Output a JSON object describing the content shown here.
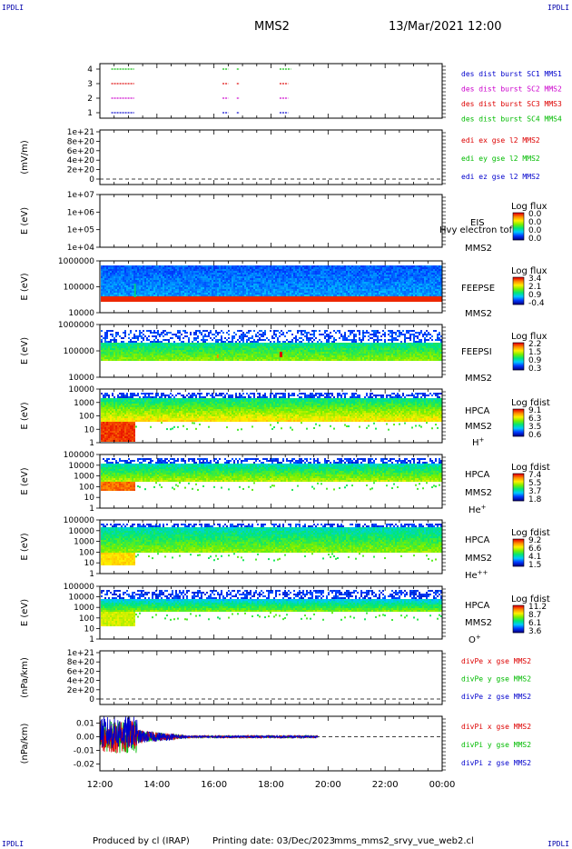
{
  "header": {
    "corner_tl": "IPDLI",
    "corner_tr": "IPDLI",
    "corner_bl": "IPDLI",
    "corner_br": "IPDLI",
    "title": "MMS2",
    "datetime": "13/Mar/2021 12:00"
  },
  "footer": {
    "produced": "Produced by cl (IRAP)",
    "printed": "Printing date: 03/Dec/2023",
    "file": "mms_mms2_srvy_vue_web2.cl"
  },
  "colors": {
    "mms1": "#0000cc",
    "mms2": "#cc00cc",
    "mms3": "#dd0000",
    "mms4": "#00bb00"
  },
  "chart_data": [
    {
      "type": "line",
      "panel": "burst",
      "yticks": [
        "1",
        "2",
        "3",
        "4"
      ],
      "legend": [
        {
          "text": "des dist burst SC1 MMS1",
          "color": "#0000cc"
        },
        {
          "text": "des dist burst SC2 MMS2",
          "color": "#cc00cc"
        },
        {
          "text": "des dist burst SC3 MMS3",
          "color": "#dd0000"
        },
        {
          "text": "des dist burst SC4 MMS4",
          "color": "#00bb00"
        }
      ],
      "segments": [
        {
          "level": 4,
          "color": "#00bb00",
          "ranges": [
            [
              12.4,
              13.2
            ],
            [
              16.3,
              16.5
            ],
            [
              16.8,
              16.9
            ],
            [
              18.3,
              18.7
            ]
          ]
        },
        {
          "level": 3,
          "color": "#dd0000",
          "ranges": [
            [
              12.4,
              13.2
            ],
            [
              16.3,
              16.5
            ],
            [
              16.8,
              16.9
            ],
            [
              18.3,
              18.6
            ]
          ]
        },
        {
          "level": 2,
          "color": "#cc00cc",
          "ranges": [
            [
              12.4,
              13.2
            ],
            [
              16.3,
              16.5
            ],
            [
              16.8,
              16.9
            ],
            [
              18.3,
              18.6
            ]
          ]
        },
        {
          "level": 1,
          "color": "#0000cc",
          "ranges": [
            [
              12.4,
              13.2
            ],
            [
              16.3,
              16.5
            ],
            [
              16.8,
              16.9
            ],
            [
              18.3,
              18.6
            ]
          ]
        }
      ]
    },
    {
      "type": "line",
      "panel": "edi",
      "ylabel": "(mV/m)",
      "yticks": [
        "0",
        "2e+20",
        "4e+20",
        "6e+20",
        "8e+20",
        "1e+21"
      ],
      "legend": [
        {
          "text": "edi ex gse l2 MMS2",
          "color": "#dd0000"
        },
        {
          "text": "edi ey gse l2 MMS2",
          "color": "#00bb00"
        },
        {
          "text": "edi ez gse l2 MMS2",
          "color": "#0000cc"
        }
      ]
    },
    {
      "type": "heatmap",
      "panel": "eis",
      "ylabel": "E (eV)",
      "yticks": [
        "1e+04",
        "1e+05",
        "1e+06",
        "1e+07"
      ],
      "instrument": "EIS",
      "spacecraft": "MMS2",
      "species": "Hvy electron tof",
      "colorbar_title": "Log flux",
      "colorbar_ticks": [
        "0.0",
        "0.0",
        "0.0",
        "0.0"
      ]
    },
    {
      "type": "heatmap",
      "panel": "feepse",
      "ylabel": "E (eV)",
      "yticks": [
        "10000",
        "100000",
        "1000000"
      ],
      "instrument": "FEEPSE",
      "spacecraft": "MMS2",
      "colorbar_title": "Log flux",
      "colorbar_ticks": [
        "3.4",
        "2.1",
        "0.9",
        "-0.4"
      ]
    },
    {
      "type": "heatmap",
      "panel": "feepsi",
      "ylabel": "E (eV)",
      "yticks": [
        "10000",
        "100000",
        "1000000"
      ],
      "instrument": "FEEPSI",
      "spacecraft": "MMS2",
      "colorbar_title": "Log flux",
      "colorbar_ticks": [
        "2.2",
        "1.5",
        "0.9",
        "0.3"
      ]
    },
    {
      "type": "heatmap",
      "panel": "hpca_h",
      "ylabel": "E (eV)",
      "yticks": [
        "1",
        "10",
        "100",
        "1000",
        "10000"
      ],
      "instrument": "HPCA",
      "spacecraft": "MMS2",
      "species": "H+",
      "colorbar_title": "Log fdist",
      "colorbar_ticks": [
        "9.1",
        "6.3",
        "3.5",
        "0.6"
      ]
    },
    {
      "type": "heatmap",
      "panel": "hpca_he",
      "ylabel": "E (eV)",
      "yticks": [
        "1",
        "10",
        "100",
        "1000",
        "10000",
        "100000"
      ],
      "instrument": "HPCA",
      "spacecraft": "MMS2",
      "species": "He+",
      "colorbar_title": "Log fdist",
      "colorbar_ticks": [
        "7.4",
        "5.5",
        "3.7",
        "1.8"
      ]
    },
    {
      "type": "heatmap",
      "panel": "hpca_hepp",
      "ylabel": "E (eV)",
      "yticks": [
        "1",
        "10",
        "100",
        "1000",
        "10000",
        "100000"
      ],
      "instrument": "HPCA",
      "spacecraft": "MMS2",
      "species": "He++",
      "colorbar_title": "Log fdist",
      "colorbar_ticks": [
        "9.2",
        "6.6",
        "4.1",
        "1.5"
      ]
    },
    {
      "type": "heatmap",
      "panel": "hpca_o",
      "ylabel": "E (eV)",
      "yticks": [
        "1",
        "10",
        "100",
        "1000",
        "10000",
        "100000"
      ],
      "instrument": "HPCA",
      "spacecraft": "MMS2",
      "species": "O+",
      "colorbar_title": "Log fdist",
      "colorbar_ticks": [
        "11.2",
        "8.7",
        "6.1",
        "3.6"
      ]
    },
    {
      "type": "line",
      "panel": "divpe",
      "ylabel": "(nPa/km)",
      "yticks": [
        "0",
        "2e+20",
        "4e+20",
        "6e+20",
        "8e+20",
        "1e+21"
      ],
      "legend": [
        {
          "text": "divPe x gse MMS2",
          "color": "#dd0000"
        },
        {
          "text": "divPe y gse MMS2",
          "color": "#00bb00"
        },
        {
          "text": "divPe z gse MMS2",
          "color": "#0000cc"
        }
      ]
    },
    {
      "type": "line",
      "panel": "divpi",
      "ylabel": "(nPa/km)",
      "yticks": [
        "-0.02",
        "-0.01",
        "0.00",
        "0.01"
      ],
      "ylim": [
        -0.025,
        0.015
      ],
      "legend": [
        {
          "text": "divPi x gse MMS2",
          "color": "#dd0000"
        },
        {
          "text": "divPi y gse MMS2",
          "color": "#00bb00"
        },
        {
          "text": "divPi z gse MMS2",
          "color": "#0000cc"
        }
      ]
    }
  ],
  "xaxis": {
    "ticks": [
      "12:00",
      "14:00",
      "16:00",
      "18:00",
      "20:00",
      "22:00",
      "00:00"
    ],
    "range_hours": [
      12,
      24
    ]
  }
}
